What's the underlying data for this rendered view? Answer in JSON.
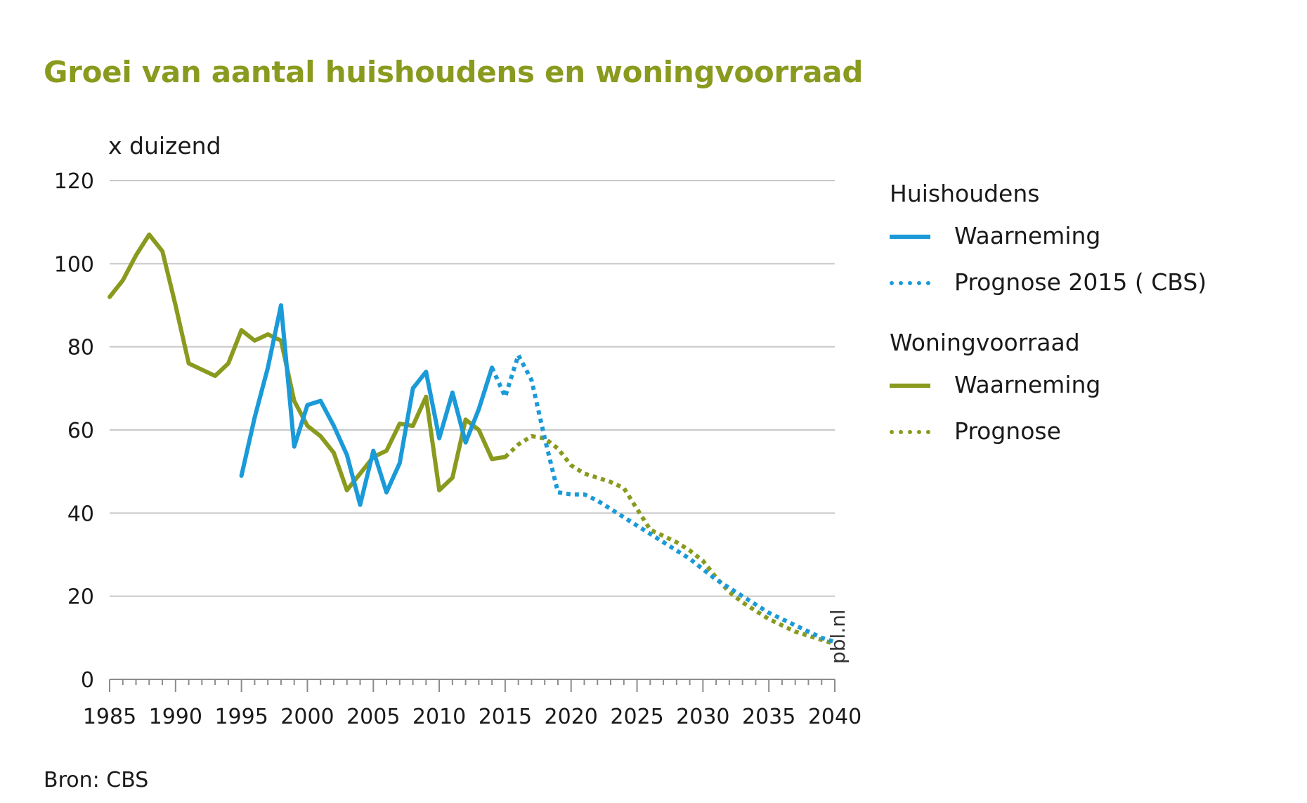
{
  "title": "Groei van aantal huishoudens en woningvoorraad",
  "source": "Bron: CBS",
  "watermark": "pbl.nl",
  "colors": {
    "huishoudens": "#1a9ad8",
    "woningvoorraad": "#8a9a1e",
    "title": "#8a9a1e",
    "grid": "#c8c8c8"
  },
  "legend": {
    "groups": [
      {
        "title": "Huishoudens",
        "items": [
          {
            "label": "Waarneming",
            "style": "solid",
            "color": "#1a9ad8"
          },
          {
            "label": "Prognose 2015 ( CBS)",
            "style": "dotted",
            "color": "#1a9ad8"
          }
        ]
      },
      {
        "title": "Woningvoorraad",
        "items": [
          {
            "label": "Waarneming",
            "style": "solid",
            "color": "#8a9a1e"
          },
          {
            "label": "Prognose",
            "style": "dotted",
            "color": "#8a9a1e"
          }
        ]
      }
    ]
  },
  "chart_data": {
    "type": "line",
    "title": "Groei van aantal huishoudens en woningvoorraad",
    "ylabel": "x duizend",
    "xlabel": "",
    "xlim": [
      1985,
      2040
    ],
    "ylim": [
      0,
      120
    ],
    "xticks": [
      1985,
      1990,
      1995,
      2000,
      2005,
      2010,
      2015,
      2020,
      2025,
      2030,
      2035,
      2040
    ],
    "yticks": [
      0,
      20,
      40,
      60,
      80,
      100,
      120
    ],
    "grid": true,
    "legend_position": "right",
    "series": [
      {
        "name": "Huishoudens – Waarneming",
        "color": "#1a9ad8",
        "style": "solid",
        "x": [
          1995,
          1996,
          1997,
          1998,
          1999,
          2000,
          2001,
          2002,
          2003,
          2004,
          2005,
          2006,
          2007,
          2008,
          2009,
          2010,
          2011,
          2012,
          2013,
          2014
        ],
        "y": [
          49,
          63,
          75,
          90,
          56,
          66,
          67,
          61,
          54,
          42,
          55,
          45,
          52,
          70,
          74,
          58,
          69,
          57,
          65,
          75
        ]
      },
      {
        "name": "Huishoudens – Prognose 2015 ( CBS)",
        "color": "#1a9ad8",
        "style": "dotted",
        "x": [
          2014,
          2015,
          2016,
          2017,
          2018,
          2019,
          2020,
          2021,
          2022,
          2023,
          2024,
          2025,
          2026,
          2027,
          2028,
          2029,
          2030,
          2031,
          2032,
          2033,
          2034,
          2035,
          2036,
          2037,
          2038,
          2039,
          2040
        ],
        "y": [
          75,
          68,
          78,
          72,
          58,
          45,
          44.5,
          44.5,
          43,
          41,
          39,
          37,
          35,
          33,
          31,
          29,
          26.5,
          24,
          22,
          20,
          18,
          16,
          14.5,
          13,
          11.5,
          10,
          9
        ]
      },
      {
        "name": "Woningvoorraad – Waarneming",
        "color": "#8a9a1e",
        "style": "solid",
        "x": [
          1985,
          1986,
          1987,
          1988,
          1989,
          1990,
          1991,
          1992,
          1993,
          1994,
          1995,
          1996,
          1997,
          1998,
          1999,
          2000,
          2001,
          2002,
          2003,
          2004,
          2005,
          2006,
          2007,
          2008,
          2009,
          2010,
          2011,
          2012,
          2013,
          2014,
          2015
        ],
        "y": [
          92,
          96,
          102,
          107,
          103,
          90,
          76,
          74.5,
          73,
          76,
          84,
          81.5,
          83,
          81.5,
          67,
          61,
          58.5,
          54.5,
          45.5,
          49.5,
          53.5,
          55,
          61.5,
          61,
          68,
          45.5,
          48.5,
          62.5,
          60,
          53,
          53.5
        ]
      },
      {
        "name": "Woningvoorraad – Prognose",
        "color": "#8a9a1e",
        "style": "dotted",
        "x": [
          2015,
          2016,
          2017,
          2018,
          2019,
          2020,
          2021,
          2022,
          2023,
          2024,
          2025,
          2026,
          2027,
          2028,
          2029,
          2030,
          2031,
          2032,
          2033,
          2034,
          2035,
          2036,
          2037,
          2038,
          2039,
          2040
        ],
        "y": [
          53.5,
          56.5,
          58.5,
          58,
          55.5,
          51.5,
          49.5,
          48.5,
          47.5,
          46,
          41,
          36,
          34.5,
          33,
          31,
          28.5,
          24.5,
          21,
          18.5,
          16.5,
          14.5,
          13,
          11.5,
          10.5,
          9.5,
          8.5
        ]
      }
    ]
  }
}
